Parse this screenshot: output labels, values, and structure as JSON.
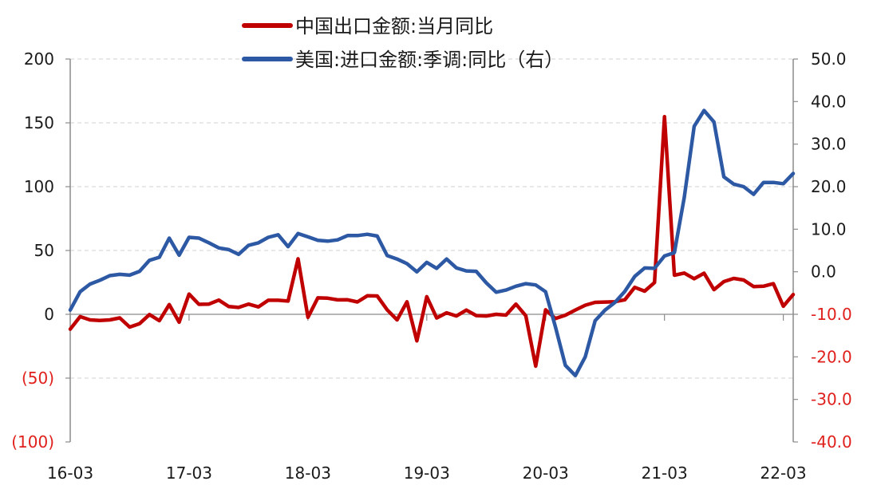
{
  "chart_data": {
    "type": "line",
    "title": "",
    "xlabel": "",
    "ylabel_left": "",
    "ylabel_right": "",
    "ylim_left": [
      -100,
      200
    ],
    "ylim_right": [
      -40,
      50
    ],
    "left_ticks": [
      {
        "value": 200,
        "label": "200",
        "color": "#1a1a1a"
      },
      {
        "value": 150,
        "label": "150",
        "color": "#1a1a1a"
      },
      {
        "value": 100,
        "label": "100",
        "color": "#1a1a1a"
      },
      {
        "value": 50,
        "label": "50",
        "color": "#1a1a1a"
      },
      {
        "value": 0,
        "label": "0",
        "color": "#1a1a1a"
      },
      {
        "value": -50,
        "label": "(50)",
        "color": "#e0201c"
      },
      {
        "value": -100,
        "label": "(100)",
        "color": "#e0201c"
      }
    ],
    "right_ticks": [
      {
        "value": 50,
        "label": "50.0",
        "color": "#1a1a1a"
      },
      {
        "value": 40,
        "label": "40.0",
        "color": "#1a1a1a"
      },
      {
        "value": 30,
        "label": "30.0",
        "color": "#1a1a1a"
      },
      {
        "value": 20,
        "label": "20.0",
        "color": "#1a1a1a"
      },
      {
        "value": 10,
        "label": "10.0",
        "color": "#1a1a1a"
      },
      {
        "value": 0,
        "label": "0.0",
        "color": "#1a1a1a"
      },
      {
        "value": -10,
        "label": "-10.0",
        "color": "#e0201c"
      },
      {
        "value": -20,
        "label": "-20.0",
        "color": "#e0201c"
      },
      {
        "value": -30,
        "label": "-30.0",
        "color": "#e0201c"
      },
      {
        "value": -40,
        "label": "-40.0",
        "color": "#e0201c"
      }
    ],
    "x_ticks": [
      "16-03",
      "17-03",
      "18-03",
      "19-03",
      "20-03",
      "21-03",
      "22-03"
    ],
    "grid": "horizontal dashed",
    "legend_position": "top",
    "series": [
      {
        "name": "中国出口金额:当月同比",
        "axis": "left",
        "color": "#c00000",
        "values": [
          -11.6,
          -1.8,
          -4.4,
          -4.8,
          -4.4,
          -2.8,
          -10.0,
          -7.3,
          -0.2,
          -5.0,
          7.6,
          -6.2,
          15.9,
          7.8,
          8.0,
          11.1,
          6.1,
          5.4,
          8.0,
          5.8,
          11.0,
          11.0,
          10.4,
          43.5,
          -2.4,
          12.9,
          12.6,
          11.3,
          11.4,
          9.7,
          14.5,
          14.4,
          3.5,
          -4.4,
          9.8,
          -20.8,
          13.8,
          -2.9,
          1.2,
          -1.3,
          3.3,
          -1.0,
          -1.3,
          0.0,
          -0.6,
          8.0,
          -1.1,
          -40.6,
          3.5,
          -3.3,
          -0.7,
          3.4,
          7.1,
          9.4,
          9.6,
          9.9,
          11.4,
          21.1,
          18.1,
          24.9,
          154.9,
          30.6,
          32.3,
          27.9,
          32.2,
          19.3,
          25.6,
          28.1,
          26.9,
          21.7,
          22.0,
          24.0,
          6.3,
          15.5
        ]
      },
      {
        "name": "美国:进口金额:季调:同比（右）",
        "axis": "right",
        "color": "#2d59a4",
        "values": [
          -9.0,
          -4.7,
          -2.9,
          -2.0,
          -0.9,
          -0.6,
          -0.8,
          0.1,
          2.7,
          3.4,
          7.9,
          3.9,
          8.1,
          7.9,
          6.8,
          5.6,
          5.2,
          4.1,
          6.2,
          6.8,
          8.1,
          8.7,
          5.9,
          9.0,
          8.2,
          7.4,
          7.2,
          7.5,
          8.5,
          8.5,
          8.8,
          8.4,
          3.8,
          3.0,
          1.9,
          0.0,
          2.2,
          0.8,
          3.0,
          0.9,
          0.2,
          0.1,
          -2.6,
          -4.8,
          -4.3,
          -3.4,
          -2.8,
          -3.1,
          -4.7,
          -13.0,
          -22.0,
          -24.4,
          -20.0,
          -11.5,
          -9.0,
          -7.2,
          -4.6,
          -1.1,
          0.9,
          0.8,
          3.7,
          4.5,
          17.5,
          34.2,
          37.9,
          35.2,
          22.3,
          20.6,
          20.0,
          18.2,
          21.0,
          21.0,
          20.7,
          23.1
        ]
      }
    ]
  }
}
